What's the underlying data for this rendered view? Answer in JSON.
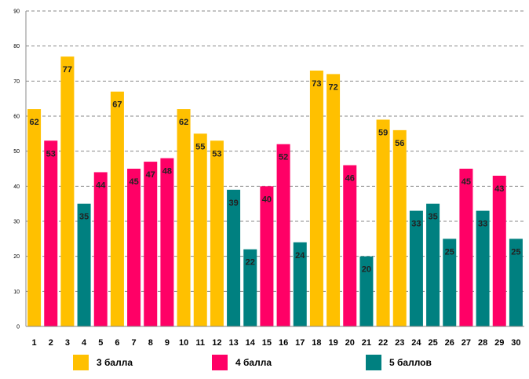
{
  "chart_data": {
    "type": "bar",
    "title": "",
    "xlabel": "",
    "ylabel": "",
    "ylim": [
      0,
      90
    ],
    "yticks": [
      0,
      10,
      20,
      30,
      40,
      50,
      60,
      70,
      80,
      90
    ],
    "grid": true,
    "categories": [
      "1",
      "2",
      "3",
      "4",
      "5",
      "6",
      "7",
      "8",
      "9",
      "10",
      "11",
      "12",
      "13",
      "14",
      "15",
      "16",
      "17",
      "18",
      "19",
      "20",
      "21",
      "22",
      "23",
      "24",
      "25",
      "26",
      "27",
      "28",
      "29",
      "30"
    ],
    "values": [
      62,
      53,
      77,
      35,
      44,
      67,
      45,
      47,
      48,
      62,
      55,
      53,
      39,
      22,
      40,
      52,
      24,
      73,
      72,
      46,
      20,
      59,
      56,
      33,
      35,
      25,
      45,
      33,
      43,
      25
    ],
    "groups": [
      "g3",
      "g4",
      "g3",
      "g5",
      "g4",
      "g3",
      "g4",
      "g4",
      "g4",
      "g3",
      "g3",
      "g3",
      "g5",
      "g5",
      "g4",
      "g4",
      "g5",
      "g3",
      "g3",
      "g4",
      "g5",
      "g3",
      "g3",
      "g5",
      "g5",
      "g5",
      "g4",
      "g5",
      "g4",
      "g5"
    ],
    "legend": [
      {
        "key": "g3",
        "label": "3 балла",
        "color": "#FFC000"
      },
      {
        "key": "g4",
        "label": "4 балла",
        "color": "#FF0066"
      },
      {
        "key": "g5",
        "label": "5 баллов",
        "color": "#008080"
      }
    ],
    "legend_position": "bottom"
  }
}
